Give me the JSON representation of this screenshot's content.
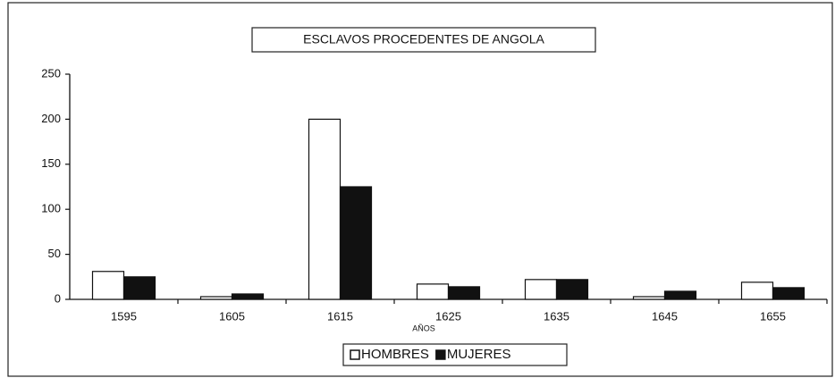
{
  "chart_data": {
    "type": "bar",
    "title": "ESCLAVOS PROCEDENTES DE ANGOLA",
    "x_label": "AÑOS",
    "categories": [
      "1595",
      "1605",
      "1615",
      "1625",
      "1635",
      "1645",
      "1655"
    ],
    "series": [
      {
        "name": "HOMBRES",
        "color": "#ffffff",
        "values": [
          31,
          3,
          200,
          17,
          22,
          3,
          19
        ]
      },
      {
        "name": "MUJERES",
        "color": "#111111",
        "values": [
          25,
          6,
          125,
          14,
          22,
          9,
          13
        ]
      }
    ],
    "ylim": [
      0,
      250
    ],
    "yticks": [
      0,
      50,
      100,
      150,
      200,
      250
    ],
    "grid": false,
    "legend": "bottom"
  }
}
